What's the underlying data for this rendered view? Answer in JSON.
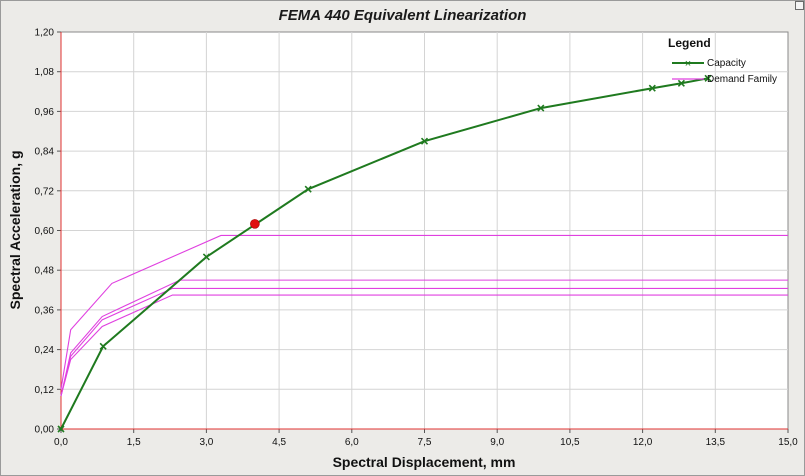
{
  "chart_data": {
    "type": "line",
    "title": "FEMA 440 Equivalent Linearization",
    "xlabel": "Spectral Displacement, mm",
    "ylabel": "Spectral Acceleration, g",
    "xlim": [
      0,
      15
    ],
    "ylim": [
      0,
      1.2
    ],
    "x_ticks": [
      "0,0",
      "1,5",
      "3,0",
      "4,5",
      "6,0",
      "7,5",
      "9,0",
      "10,5",
      "12,0",
      "13,5",
      "15,0"
    ],
    "y_ticks": [
      "0,00",
      "0,12",
      "0,24",
      "0,36",
      "0,48",
      "0,60",
      "0,72",
      "0,84",
      "0,96",
      "1,08",
      "1,20"
    ],
    "grid": true,
    "legend": {
      "title": "Legend",
      "position": "top-right"
    },
    "series": [
      {
        "name": "Capacity",
        "color": "#1f7a1f",
        "marker": "x",
        "x": [
          0,
          0.87,
          3.0,
          5.1,
          7.5,
          9.9,
          12.2,
          12.8,
          13.35
        ],
        "y": [
          0,
          0.25,
          0.52,
          0.725,
          0.87,
          0.97,
          1.03,
          1.045,
          1.06
        ]
      },
      {
        "name": "Demand Family",
        "color": "#e040e0",
        "curves": [
          {
            "x": [
              0,
              0.2,
              1.05,
              3.3,
              15.0
            ],
            "y": [
              0.12,
              0.3,
              0.44,
              0.585,
              0.585
            ]
          },
          {
            "x": [
              0,
              0.2,
              0.85,
              2.45,
              15.0
            ],
            "y": [
              0.1,
              0.23,
              0.34,
              0.45,
              0.45
            ]
          },
          {
            "x": [
              0,
              0.2,
              0.85,
              2.3,
              15.0
            ],
            "y": [
              0.1,
              0.22,
              0.33,
              0.425,
              0.425
            ]
          },
          {
            "x": [
              0,
              0.2,
              0.85,
              2.3,
              15.0
            ],
            "y": [
              0.1,
              0.21,
              0.31,
              0.405,
              0.405
            ]
          }
        ]
      }
    ],
    "performance_point": {
      "x": 4.0,
      "y": 0.62,
      "color": "#e01010"
    }
  }
}
